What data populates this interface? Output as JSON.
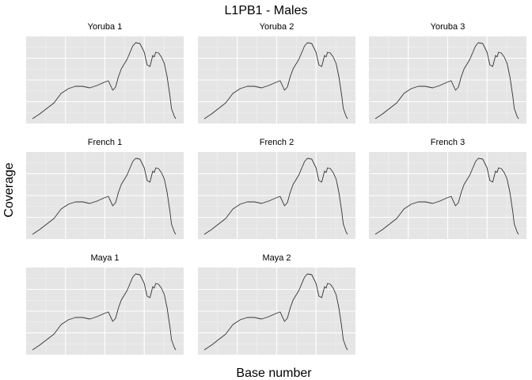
{
  "chart_data": {
    "type": "line",
    "title": "L1PB1 - Males",
    "xlabel": "Base number",
    "ylabel": "Coverage",
    "grid": true,
    "facets": [
      "Yoruba 1",
      "Yoruba 2",
      "Yoruba 3",
      "French 1",
      "French 2",
      "French 3",
      "Maya 1",
      "Maya 2"
    ],
    "x": [
      0,
      0.05,
      0.1,
      0.15,
      0.2,
      0.25,
      0.3,
      0.35,
      0.4,
      0.45,
      0.5,
      0.53,
      0.56,
      0.58,
      0.6,
      0.62,
      0.66,
      0.7,
      0.72,
      0.75,
      0.78,
      0.8,
      0.82,
      0.84,
      0.85,
      0.86,
      0.88,
      0.9,
      0.92,
      0.94,
      0.96,
      0.97,
      0.98,
      0.99,
      1.0
    ],
    "series": [
      {
        "name": "Yoruba 1",
        "values": [
          0.02,
          0.08,
          0.15,
          0.22,
          0.34,
          0.4,
          0.43,
          0.43,
          0.41,
          0.44,
          0.48,
          0.5,
          0.38,
          0.42,
          0.55,
          0.65,
          0.77,
          0.94,
          0.98,
          0.97,
          0.86,
          0.7,
          0.68,
          0.82,
          0.8,
          0.86,
          0.85,
          0.8,
          0.72,
          0.55,
          0.3,
          0.15,
          0.1,
          0.05,
          0.02
        ]
      },
      {
        "name": "Yoruba 2",
        "values": [
          0.02,
          0.08,
          0.15,
          0.22,
          0.34,
          0.4,
          0.43,
          0.43,
          0.41,
          0.44,
          0.48,
          0.5,
          0.38,
          0.42,
          0.55,
          0.65,
          0.77,
          0.94,
          0.98,
          0.97,
          0.86,
          0.7,
          0.68,
          0.82,
          0.8,
          0.86,
          0.85,
          0.8,
          0.72,
          0.55,
          0.3,
          0.15,
          0.1,
          0.05,
          0.02
        ]
      },
      {
        "name": "Yoruba 3",
        "values": [
          0.02,
          0.08,
          0.15,
          0.22,
          0.34,
          0.4,
          0.43,
          0.43,
          0.41,
          0.44,
          0.48,
          0.5,
          0.38,
          0.42,
          0.55,
          0.65,
          0.77,
          0.94,
          0.98,
          0.97,
          0.86,
          0.7,
          0.68,
          0.82,
          0.8,
          0.86,
          0.85,
          0.8,
          0.72,
          0.55,
          0.3,
          0.15,
          0.1,
          0.05,
          0.02
        ]
      },
      {
        "name": "French 1",
        "values": [
          0.02,
          0.08,
          0.15,
          0.22,
          0.34,
          0.4,
          0.43,
          0.43,
          0.41,
          0.44,
          0.48,
          0.5,
          0.38,
          0.42,
          0.55,
          0.65,
          0.77,
          0.94,
          0.98,
          0.97,
          0.86,
          0.7,
          0.68,
          0.82,
          0.8,
          0.86,
          0.85,
          0.8,
          0.72,
          0.55,
          0.3,
          0.15,
          0.1,
          0.05,
          0.02
        ]
      },
      {
        "name": "French 2",
        "values": [
          0.02,
          0.08,
          0.15,
          0.22,
          0.34,
          0.4,
          0.43,
          0.43,
          0.41,
          0.44,
          0.48,
          0.5,
          0.38,
          0.42,
          0.55,
          0.65,
          0.77,
          0.94,
          0.98,
          0.97,
          0.86,
          0.7,
          0.68,
          0.82,
          0.8,
          0.86,
          0.85,
          0.8,
          0.72,
          0.55,
          0.3,
          0.15,
          0.1,
          0.05,
          0.02
        ]
      },
      {
        "name": "French 3",
        "values": [
          0.02,
          0.08,
          0.15,
          0.22,
          0.34,
          0.4,
          0.43,
          0.43,
          0.41,
          0.44,
          0.48,
          0.5,
          0.38,
          0.42,
          0.55,
          0.65,
          0.77,
          0.94,
          0.98,
          0.97,
          0.86,
          0.7,
          0.68,
          0.82,
          0.8,
          0.86,
          0.85,
          0.8,
          0.72,
          0.55,
          0.3,
          0.15,
          0.1,
          0.05,
          0.02
        ]
      },
      {
        "name": "Maya 1",
        "values": [
          0.02,
          0.08,
          0.15,
          0.22,
          0.34,
          0.4,
          0.43,
          0.43,
          0.41,
          0.44,
          0.48,
          0.5,
          0.38,
          0.42,
          0.55,
          0.65,
          0.77,
          0.94,
          0.98,
          0.97,
          0.86,
          0.7,
          0.68,
          0.82,
          0.8,
          0.86,
          0.85,
          0.8,
          0.72,
          0.55,
          0.3,
          0.15,
          0.1,
          0.05,
          0.02
        ]
      },
      {
        "name": "Maya 2",
        "values": [
          0.02,
          0.08,
          0.15,
          0.22,
          0.34,
          0.4,
          0.43,
          0.43,
          0.41,
          0.44,
          0.48,
          0.5,
          0.38,
          0.42,
          0.55,
          0.65,
          0.77,
          0.94,
          0.98,
          0.97,
          0.86,
          0.7,
          0.68,
          0.82,
          0.8,
          0.86,
          0.85,
          0.8,
          0.72,
          0.55,
          0.3,
          0.15,
          0.1,
          0.05,
          0.02
        ]
      }
    ],
    "colors": {
      "panel_bg": "#e5e5e5",
      "grid_major": "#ffffff",
      "grid_minor": "#f2f2f2",
      "line": "#333333"
    }
  }
}
